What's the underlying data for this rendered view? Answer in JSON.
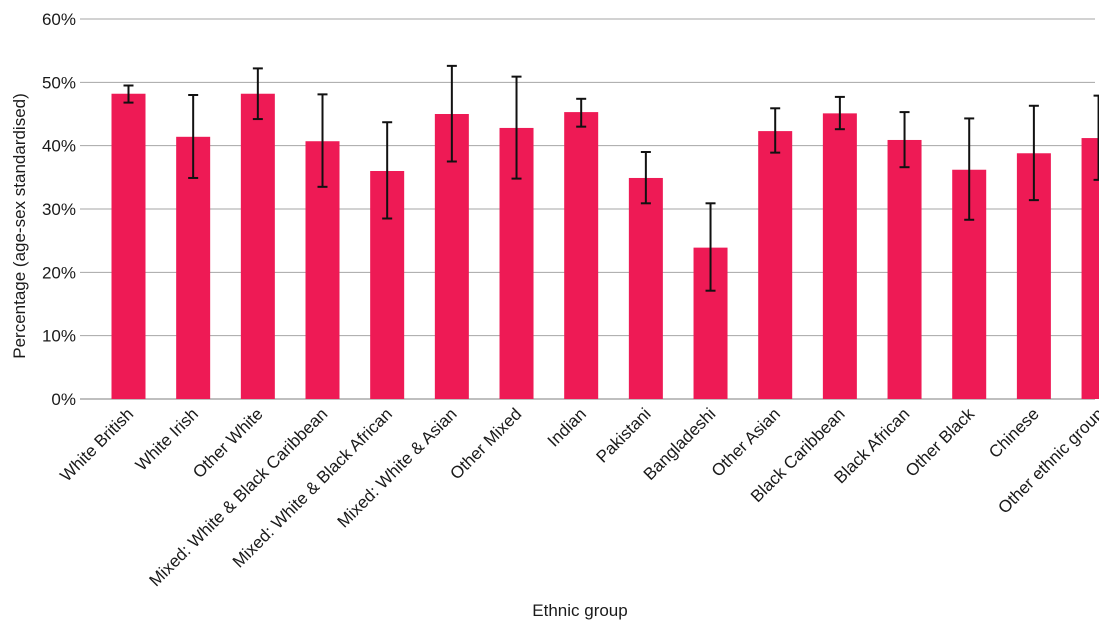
{
  "chart_data": {
    "type": "bar",
    "title": "",
    "xlabel": "Ethnic group",
    "ylabel": "Percentage (age-sex standardised)",
    "ylim": [
      0,
      60
    ],
    "yticks": [
      0,
      10,
      20,
      30,
      40,
      50,
      60
    ],
    "ytick_labels": [
      "0%",
      "10%",
      "20%",
      "30%",
      "40%",
      "50%",
      "60%"
    ],
    "grid": true,
    "legend": "none",
    "bar_color": "#EE1A55",
    "categories": [
      "White British",
      "White Irish",
      "Other White",
      "Mixed: White & Black Caribbean",
      "Mixed: White & Black African",
      "Mixed: White & Asian",
      "Other Mixed",
      "Indian",
      "Pakistani",
      "Bangladeshi",
      "Other Asian",
      "Black Caribbean",
      "Black African",
      "Other Black",
      "Chinese",
      "Other ethnic group"
    ],
    "values": [
      48.2,
      41.4,
      48.2,
      40.7,
      36.0,
      45.0,
      42.8,
      45.3,
      34.9,
      23.9,
      42.3,
      45.1,
      40.9,
      36.2,
      38.8,
      41.2
    ],
    "error_low": [
      46.8,
      34.9,
      44.2,
      33.5,
      28.5,
      37.5,
      34.8,
      43.0,
      30.9,
      17.1,
      38.9,
      42.6,
      36.6,
      28.3,
      31.4,
      34.6
    ],
    "error_high": [
      49.5,
      48.0,
      52.2,
      48.1,
      43.7,
      52.6,
      50.9,
      47.4,
      39.0,
      30.9,
      45.9,
      47.7,
      45.3,
      44.3,
      46.3,
      47.9
    ]
  }
}
